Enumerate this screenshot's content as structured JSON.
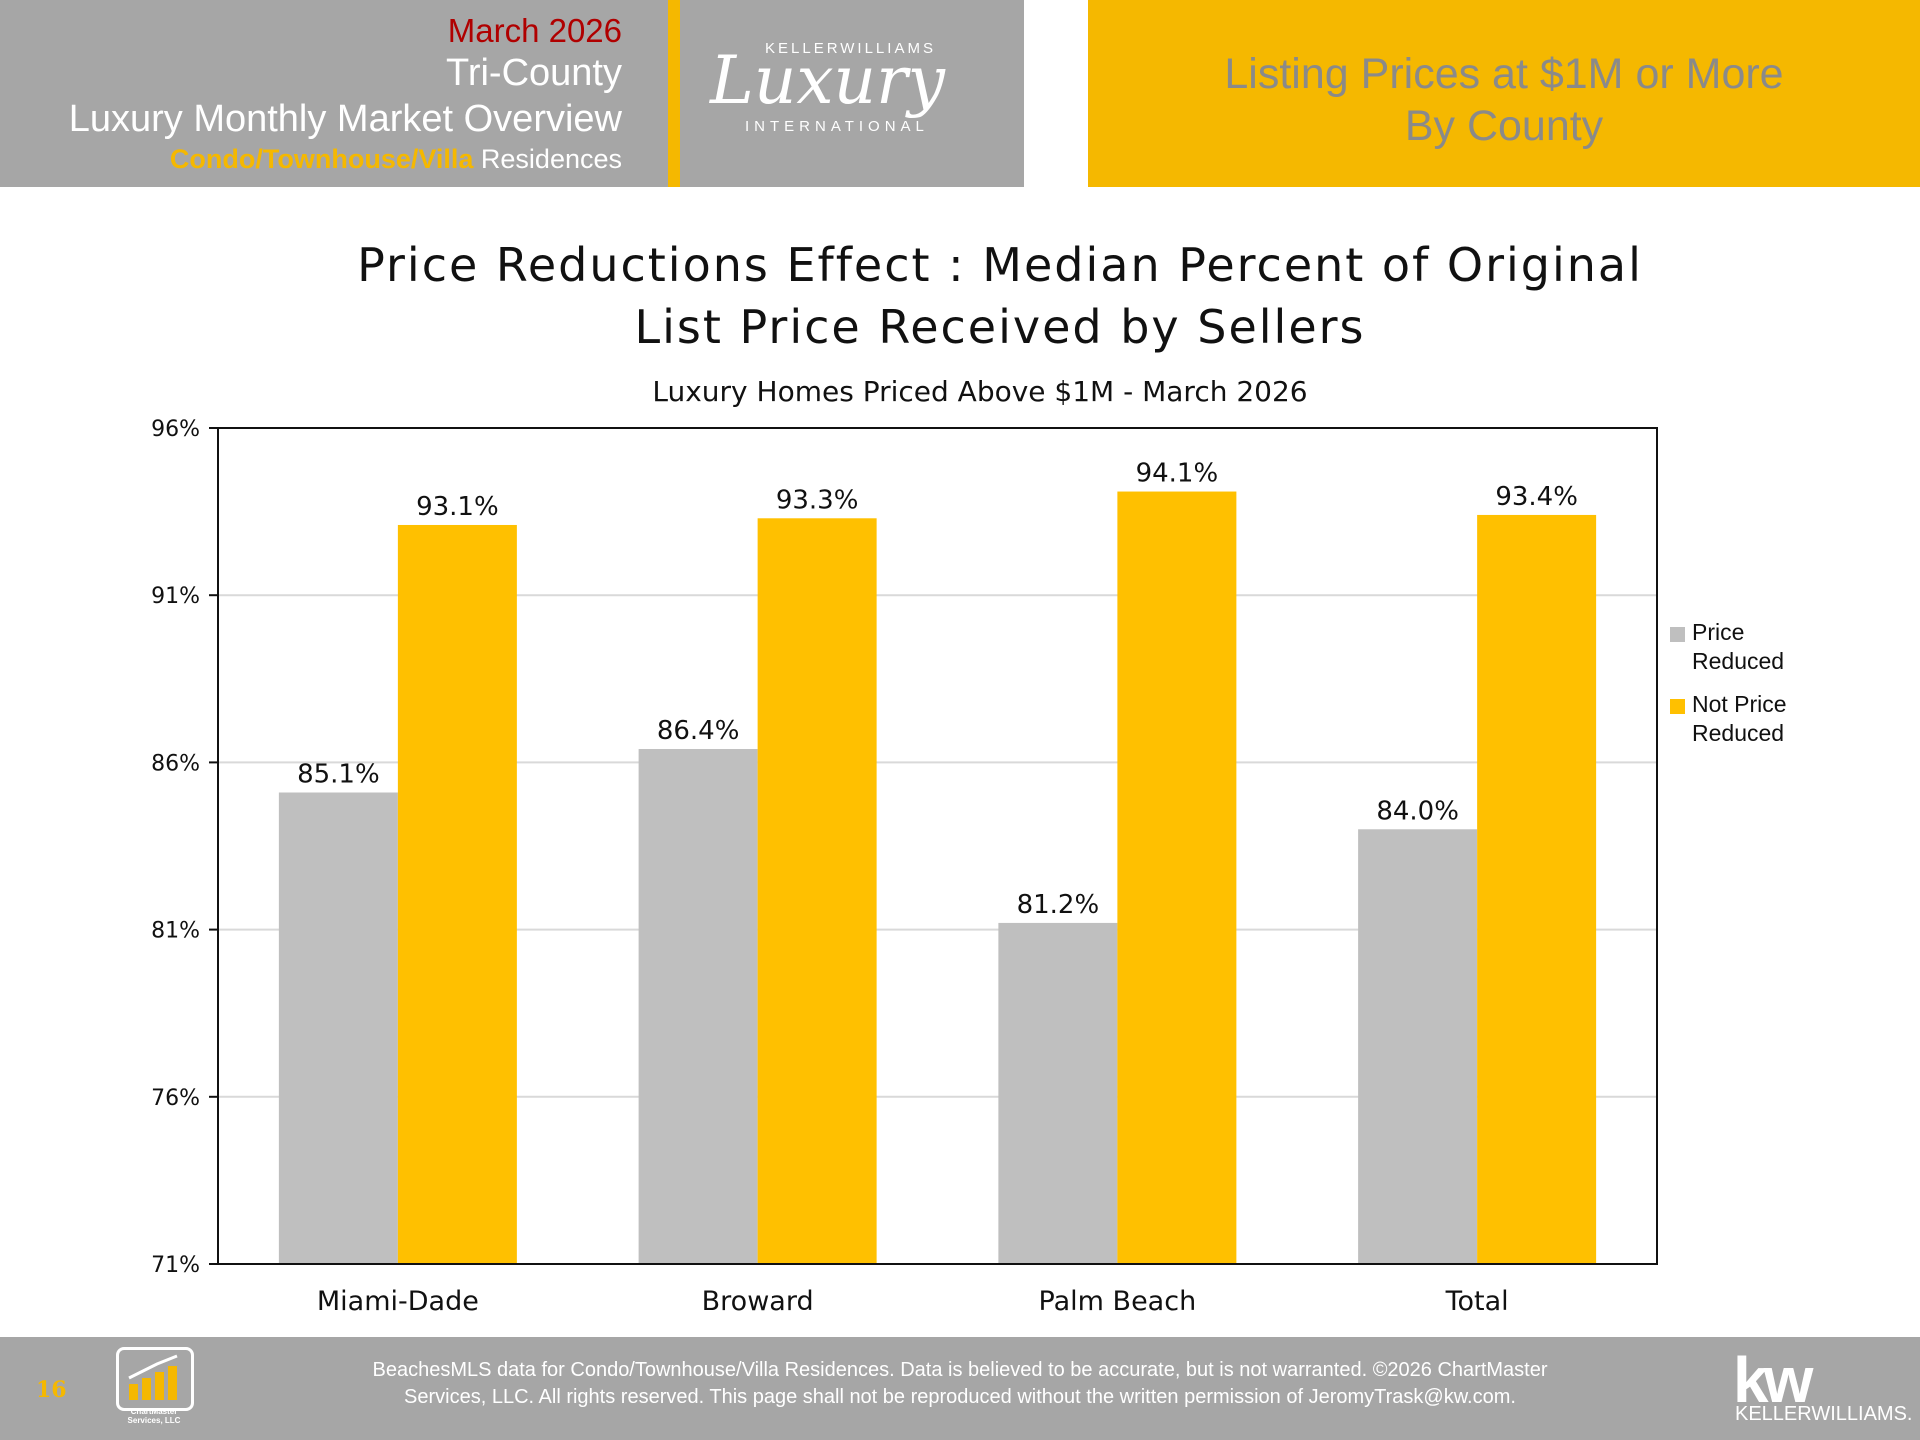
{
  "header": {
    "date": "March 2026",
    "region": "Tri-County",
    "report_title": "Luxury Monthly Market Overview",
    "property_type": "Condo/Townhouse/Villa",
    "residences_word": "Residences",
    "logo_top": "KELLERWILLIAMS",
    "logo_script": "Luxury",
    "logo_bottom": "INTERNATIONAL",
    "right_line1": "Listing Prices at $1M or More",
    "right_line2": "By County"
  },
  "chart_data": {
    "type": "bar",
    "title_line1": "Price Reductions Effect : Median Percent of Original",
    "title_line2": "List Price Received by Sellers",
    "subtitle": "Luxury Homes Priced Above $1M - March 2026",
    "categories": [
      "Miami-Dade",
      "Broward",
      "Palm Beach",
      "Total"
    ],
    "series": [
      {
        "name": "Price Reduced",
        "color": "#bfbfbf",
        "values": [
          85.1,
          86.4,
          81.2,
          84.0
        ],
        "labels": [
          "85.1%",
          "86.4%",
          "81.2%",
          "84.0%"
        ]
      },
      {
        "name": "Not Price Reduced",
        "color": "#ffc000",
        "values": [
          93.1,
          93.3,
          94.1,
          93.4
        ],
        "labels": [
          "93.1%",
          "93.3%",
          "94.1%",
          "93.4%"
        ]
      }
    ],
    "ylim": [
      71,
      96
    ],
    "yticks": [
      96,
      91,
      86,
      81,
      76,
      71
    ],
    "ytick_labels": [
      "96%",
      "91%",
      "86%",
      "81%",
      "76%",
      "71%"
    ],
    "grid": true,
    "legend_position": "right"
  },
  "legend": {
    "item1_line1": "Price",
    "item1_line2": "Reduced",
    "item2_line1": "Not Price",
    "item2_line2": "Reduced"
  },
  "footer": {
    "page_number": "16",
    "chartmaster_line1": "ChartMaster",
    "chartmaster_line2": "Services, LLC",
    "disclaimer_line1": "BeachesMLS data for Condo/Townhouse/Villa Residences.  Data is believed to be accurate, but is not warranted.   ©2026  ChartMaster",
    "disclaimer_line2": "Services, LLC.  All rights reserved. This page shall not be reproduced without the written permission of JeromyTrask@kw.com.",
    "kw_logo": "kw",
    "kw_name": "KELLERWILLIAMS."
  },
  "colors": {
    "gold": "#f5b800",
    "gray_panel": "#a6a6a6",
    "date_red": "#b00000"
  }
}
